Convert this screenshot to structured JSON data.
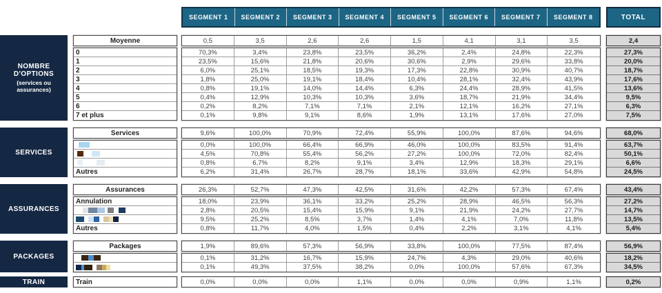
{
  "header": {
    "segments": [
      "SEGMENT 1",
      "SEGMENT 2",
      "SEGMENT 3",
      "SEGMENT 4",
      "SEGMENT 5",
      "SEGMENT 6",
      "SEGMENT 7",
      "SEGMENT 8"
    ],
    "total_label": "TOTAL"
  },
  "colors": {
    "header_teal": "#1d6585",
    "sidebar_navy": "#152843",
    "total_bg": "#d9d9d9"
  },
  "groups": [
    {
      "id": "nombre-options",
      "sidebar": {
        "title": "NOMBRE D'OPTIONS",
        "subtitle": "(services ou assurances)"
      },
      "summary": {
        "label": "Moyenne",
        "values": [
          "0,5",
          "3,5",
          "2,6",
          "2,6",
          "1,5",
          "4,1",
          "3,1",
          "3,5"
        ],
        "total": "2,4"
      },
      "rows": [
        {
          "label": "0",
          "values": [
            "70,3%",
            "3,4%",
            "23,8%",
            "23,5%",
            "36,2%",
            "2,4%",
            "24,8%",
            "22,3%"
          ],
          "total": "27,3%"
        },
        {
          "label": "1",
          "values": [
            "23,5%",
            "15,6%",
            "21,8%",
            "20,6%",
            "30,6%",
            "2,9%",
            "29,6%",
            "33,8%"
          ],
          "total": "20,0%"
        },
        {
          "label": "2",
          "values": [
            "6,0%",
            "25,1%",
            "18,5%",
            "19,3%",
            "17,3%",
            "22,8%",
            "30,9%",
            "40,7%"
          ],
          "total": "18,7%"
        },
        {
          "label": "3",
          "values": [
            "1,8%",
            "25,0%",
            "19,1%",
            "18,4%",
            "10,4%",
            "28,1%",
            "32,4%",
            "43,9%"
          ],
          "total": "17,6%"
        },
        {
          "label": "4",
          "values": [
            "0,8%",
            "19,1%",
            "14,0%",
            "14,4%",
            "6,3%",
            "24,4%",
            "28,9%",
            "41,5%"
          ],
          "total": "13,6%"
        },
        {
          "label": "5",
          "values": [
            "0,4%",
            "12,9%",
            "10,3%",
            "10,3%",
            "3,6%",
            "18,7%",
            "21,9%",
            "34,4%"
          ],
          "total": "9,5%"
        },
        {
          "label": "6",
          "values": [
            "0,2%",
            "8,2%",
            "7,1%",
            "7,1%",
            "2,1%",
            "12,1%",
            "16,2%",
            "27,1%"
          ],
          "total": "6,3%"
        },
        {
          "label": "7 et plus",
          "values": [
            "0,1%",
            "9,8%",
            "9,1%",
            "8,6%",
            "1,9%",
            "13,1%",
            "17,6%",
            "27,0%"
          ],
          "total": "7,5%"
        }
      ]
    },
    {
      "id": "services",
      "sidebar": {
        "title": "SERVICES"
      },
      "summary": {
        "label": "Services",
        "values": [
          "9,6%",
          "100,0%",
          "70,9%",
          "72,4%",
          "55,9%",
          "100,0%",
          "87,6%",
          "94,6%"
        ],
        "total": "68,0%"
      },
      "rows": [
        {
          "label": "",
          "redacted": [
            [
              4,
              ""
            ],
            [
              16,
              "#a8d5f0"
            ]
          ],
          "values": [
            "0,0%",
            "100,0%",
            "66,4%",
            "66,9%",
            "46,0%",
            "100,0%",
            "83,5%",
            "91,4%"
          ],
          "total": "63,7%"
        },
        {
          "label": "",
          "redacted": [
            [
              2,
              ""
            ],
            [
              9,
              "#54290e"
            ],
            [
              12,
              ""
            ],
            [
              12,
              "#cfe7f8"
            ]
          ],
          "values": [
            "4,5%",
            "70,8%",
            "55,4%",
            "56,2%",
            "27,2%",
            "100,0%",
            "72,0%",
            "82,4%"
          ],
          "total": "50,1%"
        },
        {
          "label": "",
          "redacted": [
            [
              2,
              ""
            ],
            [
              8,
              "#e9f1f8"
            ],
            [
              20,
              ""
            ],
            [
              12,
              "#e4ecf4"
            ]
          ],
          "values": [
            "0,8%",
            "6,7%",
            "8,2%",
            "9,1%",
            "3,4%",
            "12,9%",
            "18,3%",
            "29,1%"
          ],
          "total": "6,6%"
        },
        {
          "label": "Autres",
          "values": [
            "6,2%",
            "31,4%",
            "26,7%",
            "28,7%",
            "18,1%",
            "33,6%",
            "42,9%",
            "54,8%"
          ],
          "total": "24,5%"
        }
      ]
    },
    {
      "id": "assurances",
      "sidebar": {
        "title": "ASSURANCES"
      },
      "summary": {
        "label": "Assurances",
        "values": [
          "26,3%",
          "52,7%",
          "47,3%",
          "42,5%",
          "31,6%",
          "42,2%",
          "57,3%",
          "67,4%"
        ],
        "total": "43,4%"
      },
      "rows": [
        {
          "label": "Annulation",
          "values": [
            "18,0%",
            "23,9%",
            "36,1%",
            "33,2%",
            "25,2%",
            "28,9%",
            "46,5%",
            "56,3%"
          ],
          "total": "27,2%"
        },
        {
          "label": "",
          "redacted": [
            [
              10,
              ""
            ],
            [
              8,
              "#e4e4e4"
            ],
            [
              13,
              "#70869f"
            ],
            [
              11,
              "#a9c9e4"
            ],
            [
              4,
              ""
            ],
            [
              9,
              "#7f7f7f"
            ],
            [
              7,
              ""
            ],
            [
              10,
              "#1d3a60"
            ]
          ],
          "values": [
            "2,8%",
            "20,5%",
            "15,4%",
            "15,9%",
            "9,1%",
            "21,9%",
            "24,2%",
            "27,7%"
          ],
          "total": "14,7%"
        },
        {
          "label": "",
          "redacted": [
            [
              12,
              "#1d4a70"
            ],
            [
              6,
              ""
            ],
            [
              8,
              "#cde4f4"
            ],
            [
              8,
              "#2c62a0"
            ],
            [
              6,
              ""
            ],
            [
              8,
              "#d8c8a0"
            ],
            [
              6,
              "#eee0bc"
            ],
            [
              8,
              "#0f2240"
            ]
          ],
          "values": [
            "9,5%",
            "25,2%",
            "8,5%",
            "3,7%",
            "1,4%",
            "4,1%",
            "7,0%",
            "11,8%"
          ],
          "total": "13,5%"
        },
        {
          "label": "Autres",
          "values": [
            "0,8%",
            "11,7%",
            "4,0%",
            "1,5%",
            "0,4%",
            "2,2%",
            "3,1%",
            "4,1%"
          ],
          "total": "5,4%"
        }
      ]
    },
    {
      "id": "packages",
      "sidebar": {
        "title": "PACKAGES"
      },
      "summary": {
        "label": "Packages",
        "values": [
          "1,9%",
          "89,6%",
          "57,3%",
          "56,9%",
          "33,8%",
          "100,0%",
          "77,5%",
          "87,4%"
        ],
        "total": "56,9%"
      },
      "rows": [
        {
          "label": "",
          "redacted": [
            [
              8,
              ""
            ],
            [
              10,
              "#3a2512"
            ],
            [
              8,
              "#4e8fd0"
            ],
            [
              10,
              "#3a2512"
            ]
          ],
          "values": [
            "0,1%",
            "31,2%",
            "16,7%",
            "15,9%",
            "24,7%",
            "4,3%",
            "29,0%",
            "40,6%"
          ],
          "total": "18,2%"
        },
        {
          "label": "",
          "redacted": [
            [
              8,
              "#13254a"
            ],
            [
              4,
              "#4e8fd0"
            ],
            [
              12,
              "#30210f"
            ],
            [
              6,
              ""
            ],
            [
              8,
              "#8a7a60"
            ],
            [
              6,
              "#c8a95e"
            ],
            [
              6,
              "#f0e0a0"
            ]
          ],
          "values": [
            "0,1%",
            "49,3%",
            "37,5%",
            "38,2%",
            "0,0%",
            "100,0%",
            "57,6%",
            "67,3%"
          ],
          "total": "34,5%"
        }
      ]
    },
    {
      "id": "train",
      "sidebar": {
        "title": "TRAIN"
      },
      "rows": [
        {
          "label": "Train",
          "values": [
            "0,0%",
            "0,0%",
            "0,0%",
            "1,1%",
            "0,0%",
            "0,0%",
            "0,9%",
            "1,1%"
          ],
          "total": "0,2%"
        }
      ]
    }
  ]
}
